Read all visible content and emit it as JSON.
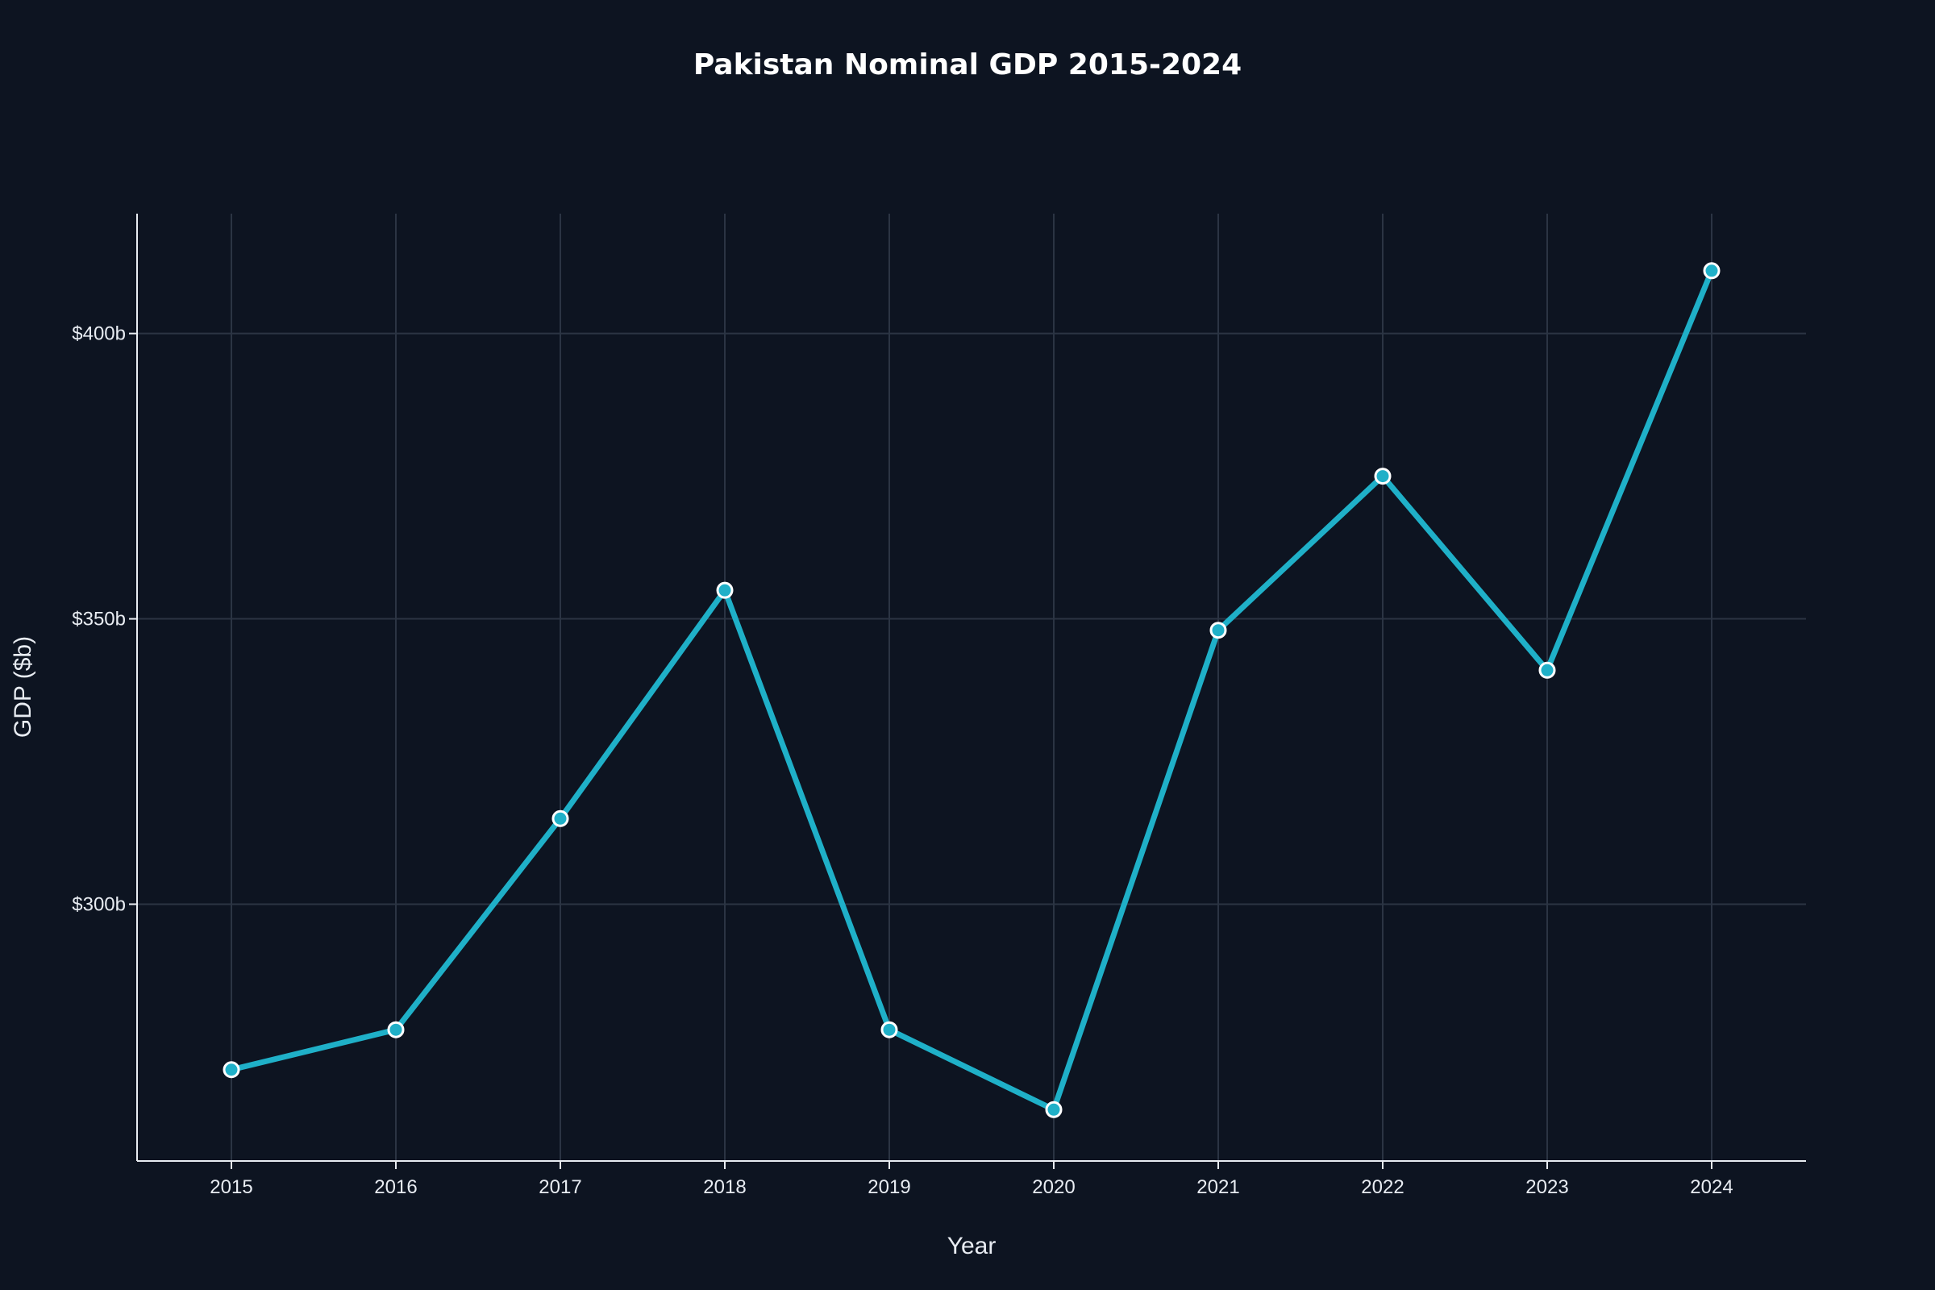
{
  "chart_data": {
    "type": "line",
    "title": "Pakistan Nominal GDP 2015-2024",
    "xlabel": "Year",
    "ylabel": "GDP ($b)",
    "x": [
      "2015",
      "2016",
      "2017",
      "2018",
      "2019",
      "2020",
      "2021",
      "2022",
      "2023",
      "2024"
    ],
    "series": [
      {
        "values": [
          271,
          278,
          315,
          355,
          278,
          264,
          348,
          375,
          341,
          411
        ]
      }
    ],
    "yticks": [
      300,
      350,
      400
    ],
    "ytick_labels": [
      "$300b",
      "$350b",
      "$400b"
    ],
    "ylim": [
      255,
      421
    ],
    "grid": true,
    "legend": "none",
    "colors": {
      "background": "#0d1421",
      "line": "#1fb0c8",
      "marker_fill": "#1fb0c8",
      "marker_stroke": "#ffffff",
      "grid": "#2b3443",
      "text": "#e8ecf2"
    }
  }
}
